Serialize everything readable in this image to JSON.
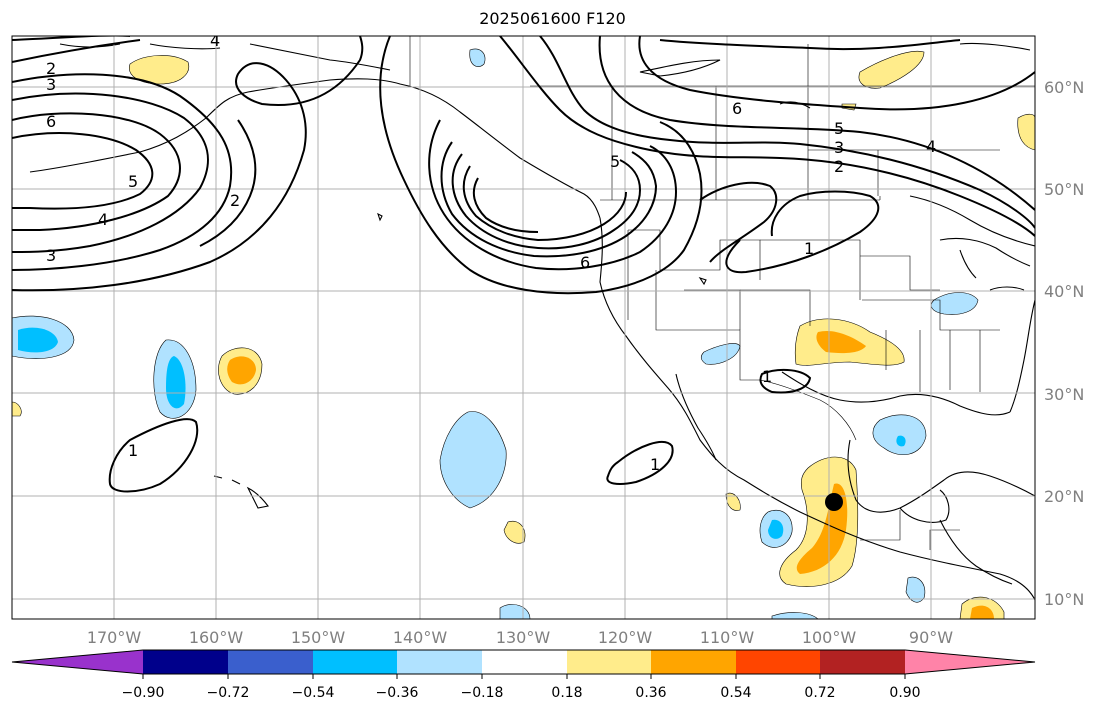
{
  "title": "2025061600 F120",
  "map": {
    "lat_labels": [
      "60°N",
      "50°N",
      "40°N",
      "30°N",
      "20°N",
      "10°N"
    ],
    "lon_labels": [
      "170°W",
      "160°W",
      "150°W",
      "140°W",
      "130°W",
      "120°W",
      "110°W",
      "100°W",
      "90°W"
    ],
    "contour_labels": [
      "2",
      "3",
      "4",
      "6",
      "5",
      "4",
      "3",
      "2",
      "1",
      "5",
      "6",
      "6",
      "5",
      "4",
      "3",
      "2",
      "1",
      "1",
      "1"
    ],
    "marker": "storm-position-dot",
    "colors": {
      "gridline": "#b0b0b0",
      "coast": "#000000",
      "contour": "#000000",
      "label_gray": "#808080"
    }
  },
  "colorbar": {
    "ticks": [
      "−0.90",
      "−0.72",
      "−0.54",
      "−0.36",
      "−0.18",
      "0.18",
      "0.36",
      "0.54",
      "0.72",
      "0.90"
    ],
    "colors": [
      "#9932cc",
      "#00008b",
      "#3a5fcd",
      "#00bfff",
      "#b0e2ff",
      "#ffffff",
      "#ffec8b",
      "#ffa500",
      "#ff4500",
      "#b22222",
      "#ff83a8"
    ]
  }
}
